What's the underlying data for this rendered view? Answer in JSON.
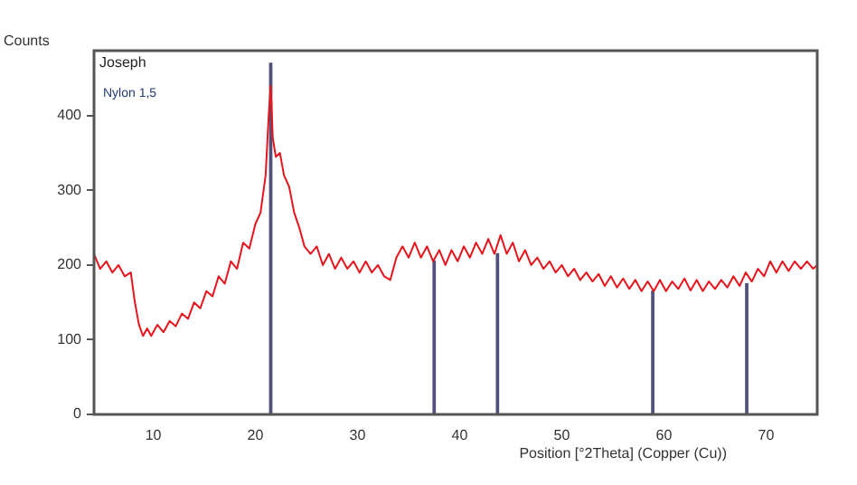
{
  "chart_data": {
    "type": "line",
    "ylabel": "Counts",
    "xlabel": "Position [°2Theta] (Copper (Cu))",
    "annotations": [
      "Joseph",
      "Nylon 1,5"
    ],
    "xlim": [
      4.2,
      75
    ],
    "xticks": [
      10,
      20,
      30,
      40,
      50,
      60,
      70
    ],
    "ylim": [
      0,
      487
    ],
    "yticks": [
      0,
      100,
      200,
      300,
      400
    ],
    "grid": false,
    "legend": false,
    "marker": "none",
    "line_style": "solid",
    "series": [
      {
        "type": "bar",
        "color": "#50507a",
        "x": [
          21.5,
          37.5,
          43.7,
          58.9,
          68.1
        ],
        "values": [
          470,
          205,
          215,
          165,
          175
        ]
      },
      {
        "color": "#e8141c",
        "x": [
          4.2,
          4.8,
          5.4,
          6.0,
          6.6,
          7.2,
          7.8,
          8.2,
          8.6,
          9.0,
          9.4,
          9.8,
          10.4,
          11.0,
          11.6,
          12.2,
          12.8,
          13.4,
          14.0,
          14.6,
          15.2,
          15.8,
          16.4,
          17.0,
          17.6,
          18.2,
          18.8,
          19.4,
          20.0,
          20.5,
          21.0,
          21.3,
          21.5,
          21.7,
          22.0,
          22.4,
          22.8,
          23.3,
          23.8,
          24.3,
          24.8,
          25.4,
          26.0,
          26.6,
          27.2,
          27.8,
          28.4,
          29.0,
          29.6,
          30.2,
          30.8,
          31.4,
          32.0,
          32.6,
          33.2,
          33.8,
          34.4,
          35.0,
          35.6,
          36.2,
          36.8,
          37.4,
          38.0,
          38.6,
          39.2,
          39.8,
          40.4,
          41.0,
          41.6,
          42.2,
          42.8,
          43.4,
          44.0,
          44.6,
          45.2,
          45.8,
          46.4,
          47.0,
          47.6,
          48.2,
          48.8,
          49.4,
          50.0,
          50.6,
          51.2,
          51.8,
          52.4,
          53.0,
          53.6,
          54.2,
          54.8,
          55.4,
          56.0,
          56.6,
          57.2,
          57.8,
          58.4,
          59.0,
          59.6,
          60.2,
          60.8,
          61.4,
          62.0,
          62.6,
          63.2,
          63.8,
          64.4,
          65.0,
          65.6,
          66.2,
          66.8,
          67.4,
          68.0,
          68.6,
          69.2,
          69.8,
          70.4,
          71.0,
          71.6,
          72.2,
          72.8,
          73.4,
          74.0,
          74.6,
          75.0
        ],
        "values": [
          215,
          195,
          205,
          190,
          200,
          185,
          190,
          150,
          120,
          105,
          115,
          105,
          120,
          110,
          125,
          118,
          135,
          128,
          150,
          142,
          165,
          158,
          185,
          175,
          205,
          195,
          230,
          222,
          255,
          270,
          320,
          400,
          440,
          370,
          345,
          350,
          320,
          305,
          270,
          250,
          225,
          215,
          225,
          200,
          215,
          195,
          210,
          195,
          205,
          190,
          205,
          190,
          200,
          185,
          180,
          210,
          225,
          210,
          230,
          210,
          225,
          205,
          220,
          200,
          220,
          205,
          225,
          210,
          230,
          215,
          235,
          215,
          240,
          215,
          230,
          205,
          220,
          200,
          210,
          195,
          205,
          190,
          200,
          185,
          195,
          180,
          190,
          178,
          188,
          172,
          185,
          170,
          182,
          168,
          180,
          165,
          178,
          165,
          180,
          165,
          178,
          168,
          182,
          166,
          180,
          165,
          178,
          168,
          180,
          170,
          185,
          172,
          190,
          178,
          195,
          185,
          205,
          190,
          205,
          192,
          205,
          195,
          205,
          195,
          200
        ]
      }
    ]
  }
}
